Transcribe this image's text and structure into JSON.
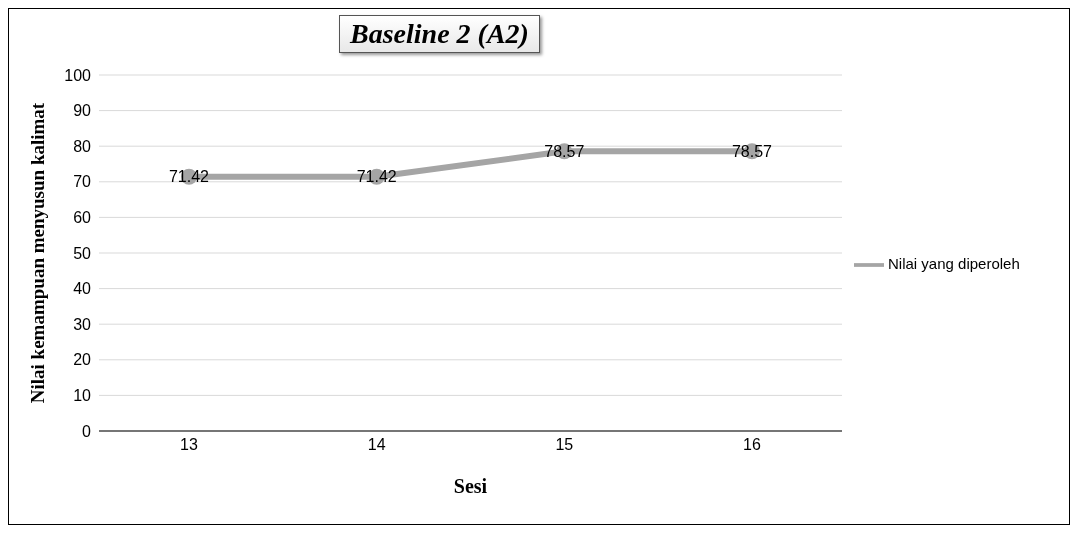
{
  "chart_data": {
    "type": "line",
    "title": "Baseline 2 (A2)",
    "xlabel": "Sesi",
    "ylabel": "Nilai kemampuan menyusun kalimat",
    "categories": [
      "13",
      "14",
      "15",
      "16"
    ],
    "series": [
      {
        "name": "Nilai yang diperoleh",
        "color": "#a5a5a5",
        "values": [
          71.42,
          71.42,
          78.57,
          78.57
        ]
      }
    ],
    "ylim": [
      0,
      100
    ],
    "yticks": [
      0,
      10,
      20,
      30,
      40,
      50,
      60,
      70,
      80,
      90,
      100
    ],
    "grid": "y",
    "legend": "right",
    "marker": "circle",
    "line_style": "solid",
    "data_labels": true
  }
}
